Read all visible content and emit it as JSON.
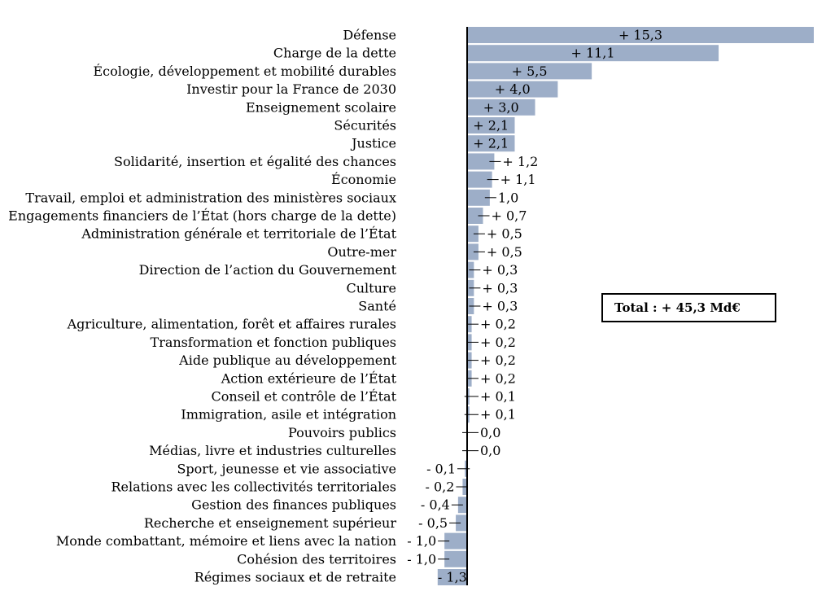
{
  "chart_data": {
    "type": "bar",
    "orientation": "horizontal",
    "bar_color": "#9daec8",
    "categories": [
      "Défense",
      "Charge de la dette",
      "Écologie, développement et mobilité durables",
      "Investir pour  la France de 2030",
      "Enseignement scolaire",
      "Sécurités",
      "Justice",
      "Solidarité, insertion et égalité des chances",
      "Économie",
      "Travail, emploi et administration des ministères sociaux",
      "Engagements financiers de l’État (hors charge de la dette)",
      "Administration générale et territoriale de l’État",
      "Outre-mer",
      "Direction de l’action du Gouvernement",
      "Culture",
      "Santé",
      "Agriculture, alimentation, forêt et affaires rurales",
      "Transformation et fonction publiques",
      "Aide publique au développement",
      "Action extérieure de l’État",
      "Conseil et contrôle de l’État",
      "Immigration, asile et intégration",
      "Pouvoirs publics",
      "Médias, livre et industries culturelles",
      "Sport, jeunesse et vie associative",
      "Relations avec les collectivités territoriales",
      "Gestion des finances publiques",
      "Recherche et enseignement supérieur",
      "Monde combattant, mémoire et liens avec la nation",
      "Cohésion des territoires",
      "Régimes sociaux et de retraite"
    ],
    "values": [
      15.3,
      11.1,
      5.5,
      4.0,
      3.0,
      2.1,
      2.1,
      1.2,
      1.1,
      1.0,
      0.7,
      0.5,
      0.5,
      0.3,
      0.3,
      0.3,
      0.2,
      0.2,
      0.2,
      0.2,
      0.1,
      0.1,
      0.0,
      0.0,
      -0.1,
      -0.2,
      -0.4,
      -0.5,
      -1.0,
      -1.0,
      -1.3
    ],
    "value_labels": [
      "+ 15,3",
      "+ 11,1",
      "+ 5,5",
      "+ 4,0",
      "+ 3,0",
      "+ 2,1",
      "+ 2,1",
      "+ 1,2",
      "+ 1,1",
      "1,0",
      "+ 0,7",
      "+ 0,5",
      "+ 0,5",
      "+ 0,3",
      "+ 0,3",
      "+ 0,3",
      "+ 0,2",
      "+ 0,2",
      "+ 0,2",
      "+ 0,2",
      "+ 0,1",
      "+ 0,1",
      "0,0",
      "0,0",
      "- 0,1",
      "- 0,2",
      "- 0,4",
      "- 0,5",
      "- 1,0",
      "- 1,0",
      "- 1,3"
    ],
    "xlim": [
      -1.3,
      15.3
    ],
    "grid": false,
    "legend": "none"
  },
  "total_box": {
    "text": "Total : + 45,3 Md€"
  }
}
